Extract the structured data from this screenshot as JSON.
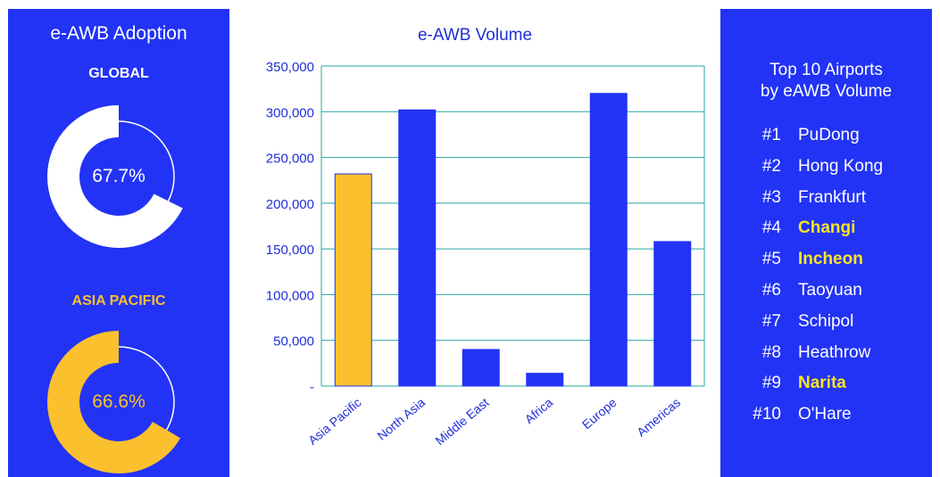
{
  "colors": {
    "panel_blue": "#2233f5",
    "bar_blue": "#2233f5",
    "highlight_yellow": "#fbc02d",
    "highlight_text": "#ffe51f",
    "grid": "#2aa3a3",
    "axis_text": "#1f2ed8"
  },
  "left_panel": {
    "title": "e-AWB Adoption",
    "donuts": [
      {
        "label": "GLOBAL",
        "value_text": "67.7%",
        "value": 67.7,
        "fill_color": "#ffffff",
        "label_color": "#ffffff",
        "text_color": "#ffffff"
      },
      {
        "label": "ASIA PACIFIC",
        "value_text": "66.6%",
        "value": 66.6,
        "fill_color": "#fbc02d",
        "label_color": "#fbc02d",
        "text_color": "#fbc02d"
      }
    ]
  },
  "right_panel": {
    "title_line1": "Top 10 Airports",
    "title_line2": "by eAWB Volume",
    "airports": [
      {
        "rank": "#1",
        "name": "PuDong",
        "highlight": false
      },
      {
        "rank": "#2",
        "name": "Hong Kong",
        "highlight": false
      },
      {
        "rank": "#3",
        "name": "Frankfurt",
        "highlight": false
      },
      {
        "rank": "#4",
        "name": "Changi",
        "highlight": true
      },
      {
        "rank": "#5",
        "name": "Incheon",
        "highlight": true
      },
      {
        "rank": "#6",
        "name": "Taoyuan",
        "highlight": false
      },
      {
        "rank": "#7",
        "name": "Schipol",
        "highlight": false
      },
      {
        "rank": "#8",
        "name": "Heathrow",
        "highlight": false
      },
      {
        "rank": "#9",
        "name": "Narita",
        "highlight": true
      },
      {
        "rank": "#10",
        "name": "O'Hare",
        "highlight": false
      }
    ]
  },
  "chart_data": {
    "type": "bar",
    "title": "e-AWB Volume",
    "xlabel": "",
    "ylabel": "",
    "categories": [
      "Asia Pacific",
      "North Asia",
      "Middle East",
      "Africa",
      "Europe",
      "Americas"
    ],
    "values": [
      232000,
      302000,
      40000,
      14000,
      320000,
      158000
    ],
    "highlight_category": "Asia Pacific",
    "ylim": [
      0,
      350000
    ],
    "yticks": [
      0,
      50000,
      100000,
      150000,
      200000,
      250000,
      300000,
      350000
    ],
    "ytick_labels": [
      "-",
      "50,000",
      "100,000",
      "150,000",
      "200,000",
      "250,000",
      "300,000",
      "350,000"
    ],
    "grid": true,
    "legend": "none"
  }
}
